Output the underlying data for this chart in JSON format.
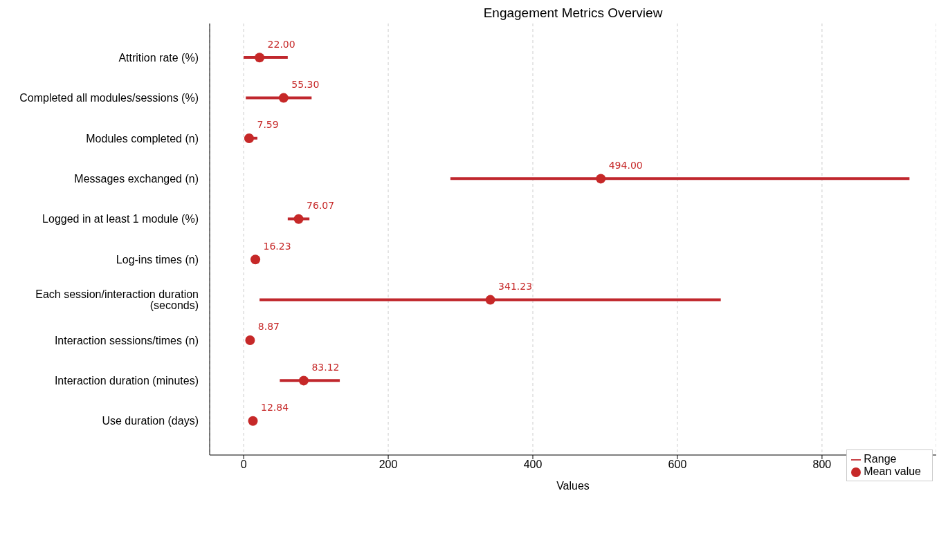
{
  "chart_data": {
    "type": "scatter",
    "title": "Engagement Metrics Overview",
    "xlabel": "Values",
    "orientation": "horizontal",
    "categories": [
      "Attrition rate (%)",
      "Completed all modules/sessions (%)",
      "Modules completed (n)",
      "Messages exchanged (n)",
      "Logged in at least 1 module (%)",
      "Log-ins times (n)",
      "Each session/interaction duration (seconds)",
      "Interaction sessions/times (n)",
      "Interaction duration (minutes)",
      "Use duration (days)"
    ],
    "series": [
      {
        "name": "Range",
        "type": "bar",
        "color": "#c0272d",
        "base": [
          0,
          3,
          1,
          286,
          61,
          null,
          22,
          null,
          50,
          null
        ],
        "values": [
          61,
          91,
          18,
          635,
          30,
          null,
          638,
          null,
          83,
          null
        ]
      },
      {
        "name": "Mean value",
        "color": "#c62828",
        "values": [
          22,
          55.3,
          7.59,
          494,
          76.07,
          16.23,
          341.23,
          8.87,
          83.12,
          12.84
        ],
        "value_labels": [
          "22.00",
          "55.30",
          "7.59",
          "494.00",
          "76.07",
          "16.23",
          "341.23",
          "8.87",
          "83.12",
          "12.84"
        ]
      }
    ],
    "xlim": [
      -47,
      958
    ],
    "xticks": [
      0,
      200,
      400,
      600,
      800
    ],
    "grid": "x",
    "legend": "bottom right"
  }
}
